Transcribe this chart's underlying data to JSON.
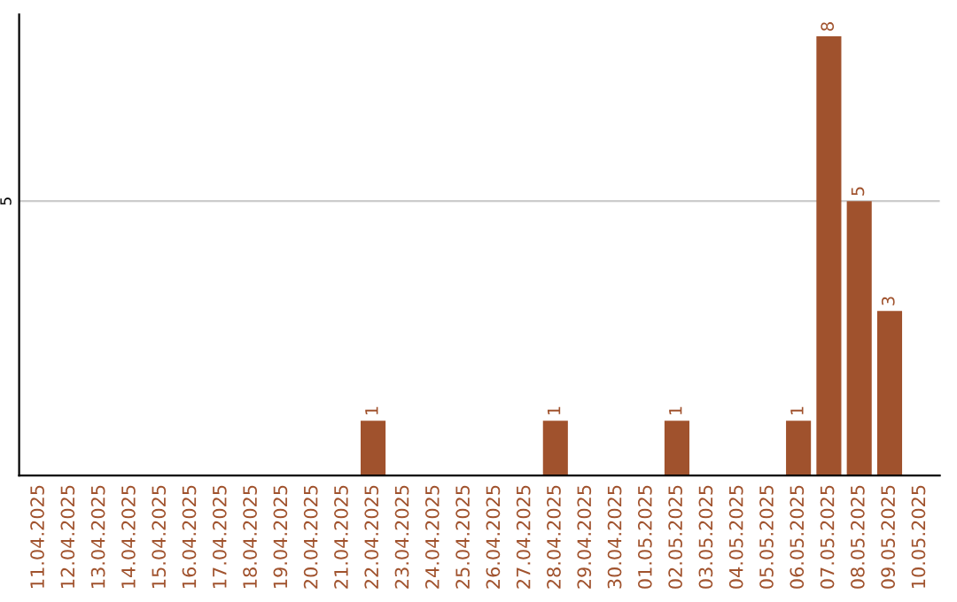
{
  "chart_data": {
    "type": "bar",
    "categories": [
      "11.04.2025",
      "12.04.2025",
      "13.04.2025",
      "14.04.2025",
      "15.04.2025",
      "16.04.2025",
      "17.04.2025",
      "18.04.2025",
      "19.04.2025",
      "20.04.2025",
      "21.04.2025",
      "22.04.2025",
      "23.04.2025",
      "24.04.2025",
      "25.04.2025",
      "26.04.2025",
      "27.04.2025",
      "28.04.2025",
      "29.04.2025",
      "30.04.2025",
      "01.05.2025",
      "02.05.2025",
      "03.05.2025",
      "04.05.2025",
      "05.05.2025",
      "06.05.2025",
      "07.05.2025",
      "08.05.2025",
      "09.05.2025",
      "10.05.2025"
    ],
    "values": [
      0,
      0,
      0,
      0,
      0,
      0,
      0,
      0,
      0,
      0,
      0,
      1,
      0,
      0,
      0,
      0,
      0,
      1,
      0,
      0,
      0,
      1,
      0,
      0,
      0,
      1,
      8,
      5,
      3,
      0
    ],
    "value_labels": [
      null,
      null,
      null,
      null,
      null,
      null,
      null,
      null,
      null,
      null,
      null,
      "1",
      null,
      null,
      null,
      null,
      null,
      "1",
      null,
      null,
      null,
      "1",
      null,
      null,
      null,
      "1",
      "8",
      "5",
      "3",
      null
    ],
    "color": "#a0522d",
    "ylim": [
      0,
      8.4
    ],
    "yticks": [
      5
    ],
    "grid": "y",
    "legend": false
  }
}
